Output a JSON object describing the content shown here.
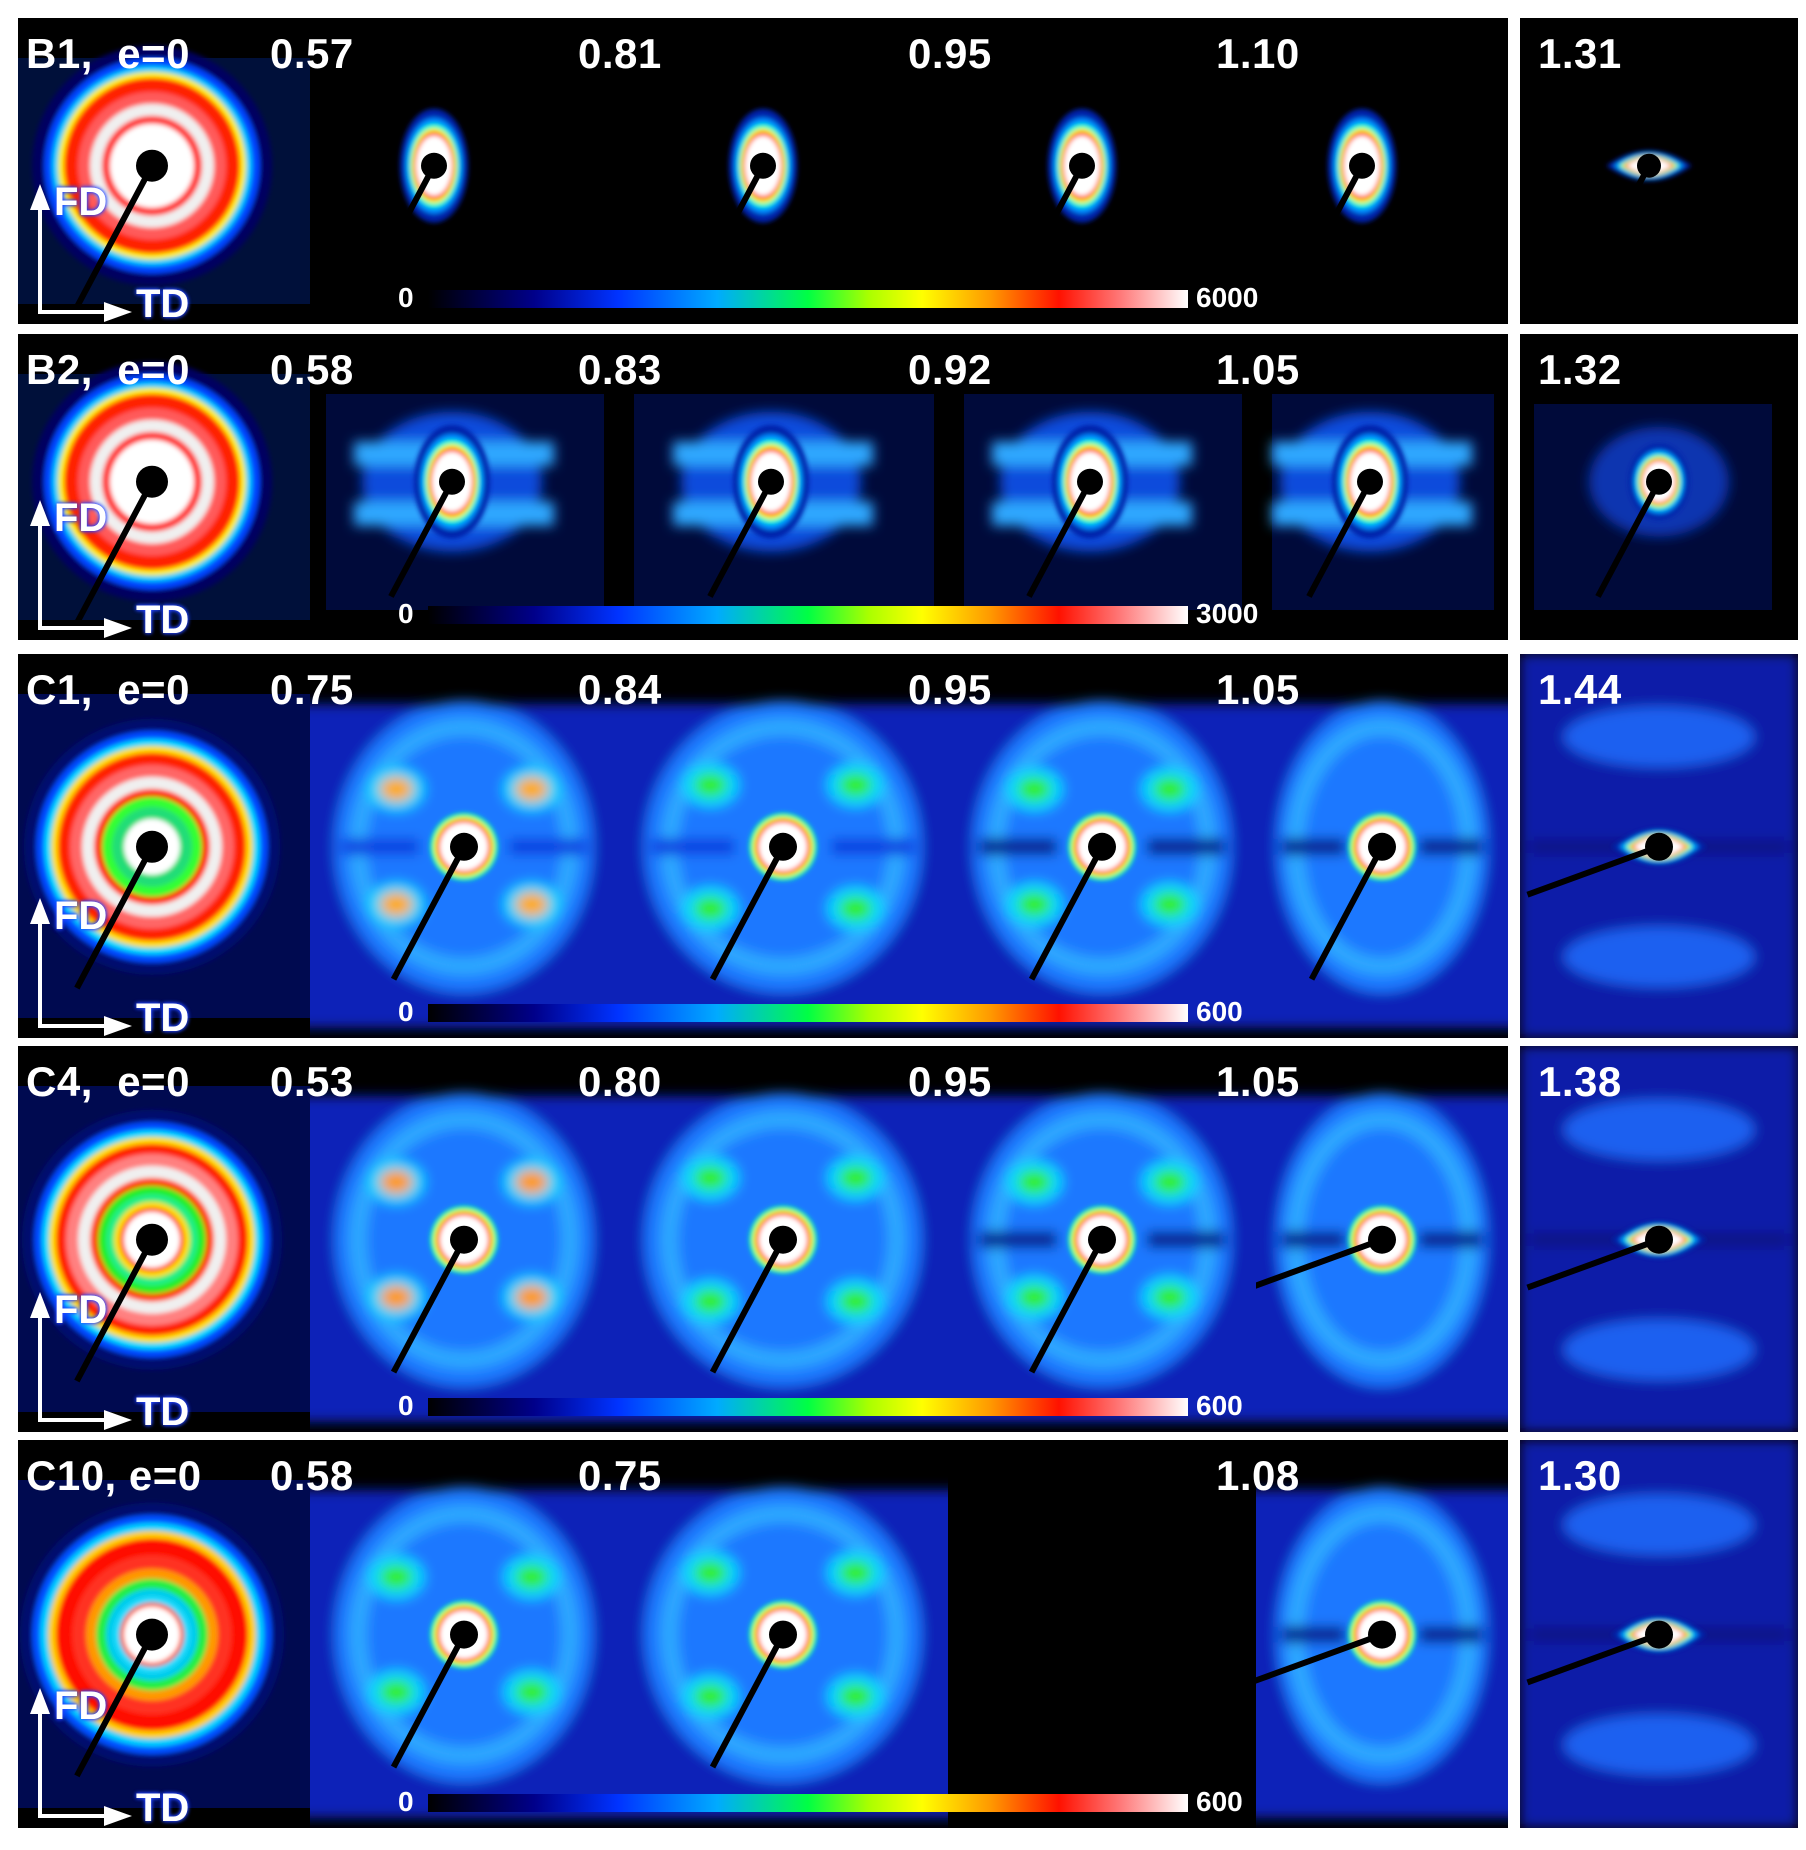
{
  "axis_labels": {
    "vertical": "FD",
    "horizontal": "TD"
  },
  "rows": [
    {
      "sample": "B1,  e=0",
      "scale_min": "0",
      "scale_max": "6000",
      "background": "black",
      "strains": [
        "0.57",
        "0.81",
        "0.95",
        "1.10"
      ],
      "side_strain": "1.31"
    },
    {
      "sample": "B2,  e=0",
      "scale_min": "0",
      "scale_max": "3000",
      "background": "black",
      "strains": [
        "0.58",
        "0.83",
        "0.92",
        "1.05"
      ],
      "side_strain": "1.32"
    },
    {
      "sample": "C1,  e=0",
      "scale_min": "0",
      "scale_max": "600",
      "background": "blue",
      "strains": [
        "0.75",
        "0.84",
        "0.95",
        "1.05"
      ],
      "side_strain": "1.44"
    },
    {
      "sample": "C4,  e=0",
      "scale_min": "0",
      "scale_max": "600",
      "background": "blue",
      "strains": [
        "0.53",
        "0.80",
        "0.95",
        "1.05"
      ],
      "side_strain": "1.38"
    },
    {
      "sample": "C10, e=0",
      "scale_min": "0",
      "scale_max": "600",
      "background": "blue",
      "strains": [
        "0.58",
        "0.75",
        "",
        "1.08"
      ],
      "side_strain": "1.30"
    }
  ]
}
